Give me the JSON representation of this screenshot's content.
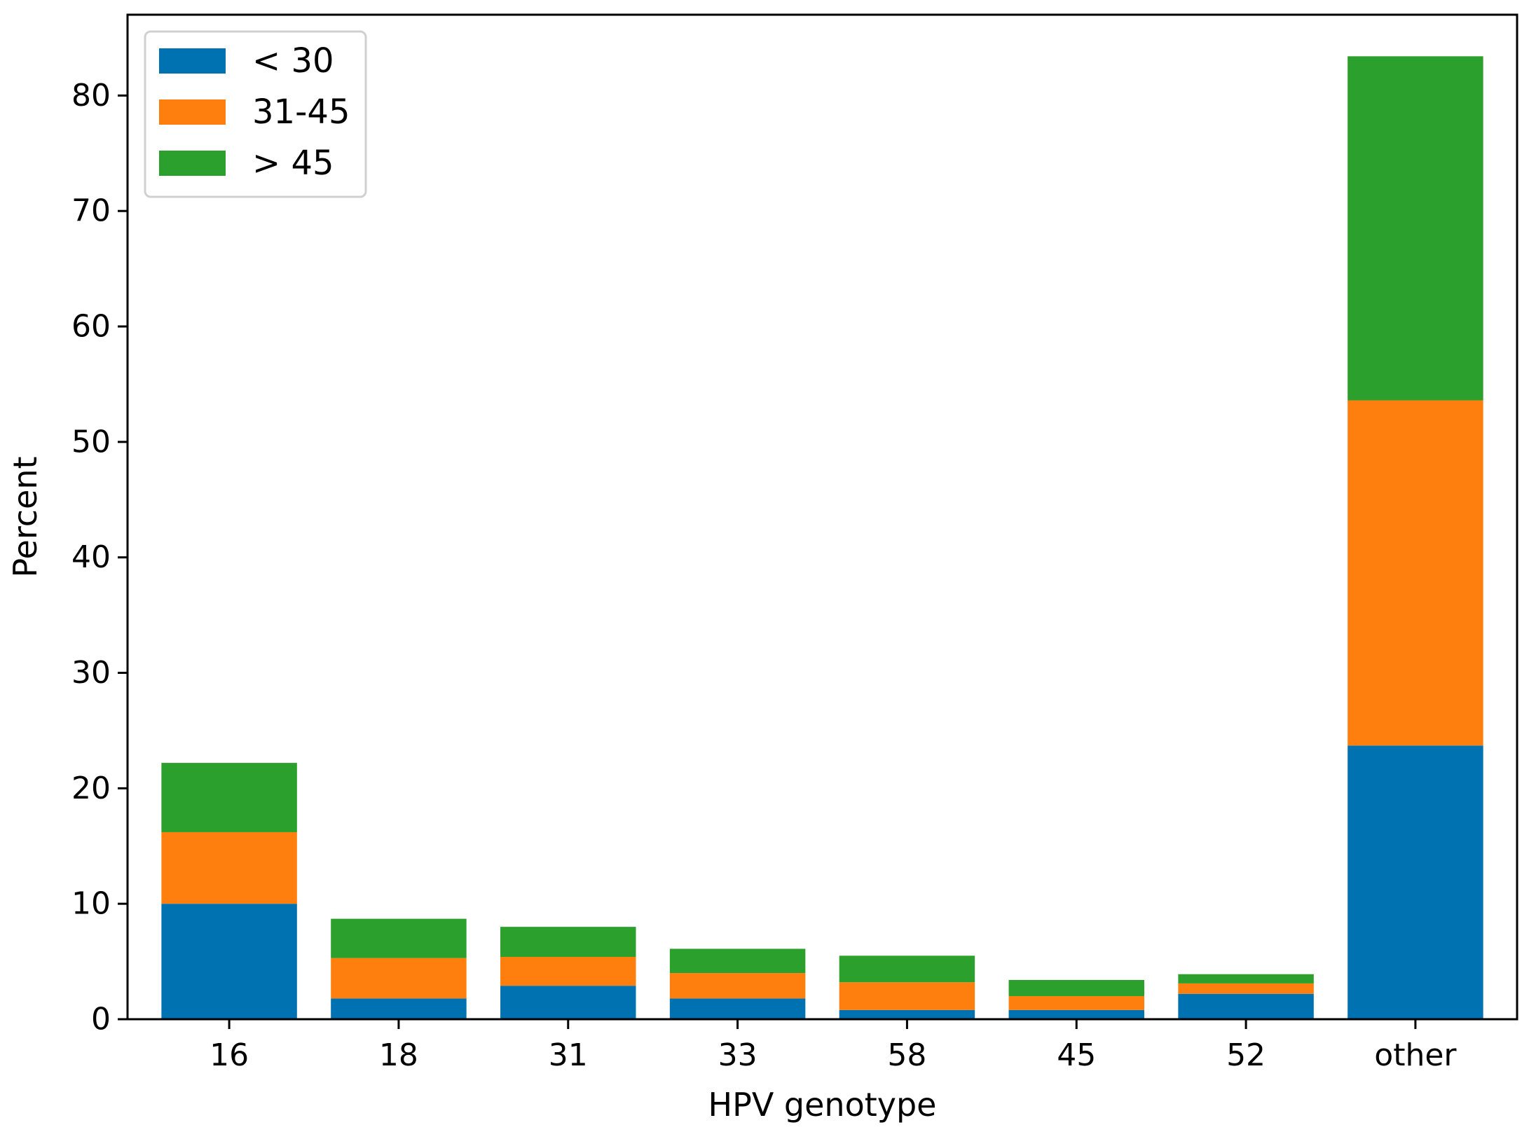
{
  "chart_data": {
    "type": "bar",
    "stacked": true,
    "title": "",
    "xlabel": "HPV genotype",
    "ylabel": "Percent",
    "categories": [
      "16",
      "18",
      "31",
      "33",
      "58",
      "45",
      "52",
      "other"
    ],
    "series": [
      {
        "name": "< 30",
        "color": "#0072b2",
        "values": [
          10.0,
          1.8,
          2.9,
          1.8,
          0.8,
          0.8,
          2.2,
          23.7
        ]
      },
      {
        "name": "31-45",
        "color": "#ff7f0e",
        "values": [
          6.2,
          3.5,
          2.5,
          2.2,
          2.4,
          1.2,
          0.9,
          29.9
        ]
      },
      {
        "name": "> 45",
        "color": "#2ca02c",
        "values": [
          6.0,
          3.4,
          2.6,
          2.1,
          2.3,
          1.4,
          0.8,
          29.8
        ]
      }
    ],
    "ylim": [
      0,
      87
    ],
    "yticks": [
      0,
      10,
      20,
      30,
      40,
      50,
      60,
      70,
      80
    ],
    "grid": false,
    "legend_position": "top-left"
  }
}
